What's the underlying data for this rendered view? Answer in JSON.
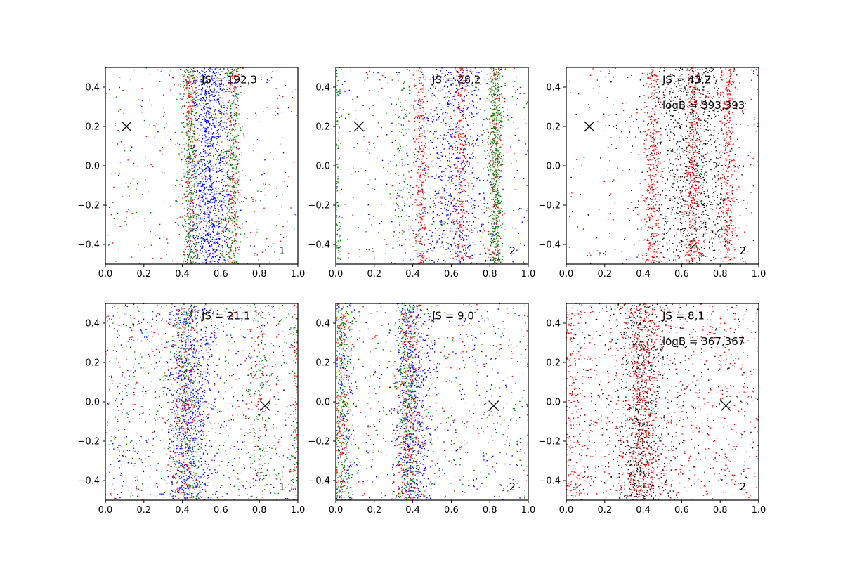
{
  "figure": {
    "colors": {
      "blue": "#0000ff",
      "green": "#008000",
      "red": "#ff0000",
      "black": "#000000",
      "axis": "#000000"
    }
  },
  "chart_data": [
    {
      "type": "scatter",
      "row": 0,
      "col": 0,
      "xlim": [
        0.0,
        1.0
      ],
      "ylim": [
        -0.5,
        0.5
      ],
      "xticks": [
        "0.0",
        "0.2",
        "0.4",
        "0.6",
        "0.8",
        "1.0"
      ],
      "yticks": [
        "-0.4",
        "-0.2",
        "0.0",
        "0.2",
        "0.4"
      ],
      "js_label": "JS = 192,3",
      "logb_label": null,
      "corner_label": "1",
      "marker": {
        "x": 0.11,
        "y": 0.2
      },
      "series": [
        {
          "name": "blue",
          "color": "#0000ff",
          "count": 1300,
          "background": 0.08,
          "clusters": [
            {
              "x": 0.54,
              "sd": 0.055,
              "w": 1.0
            }
          ]
        },
        {
          "name": "green",
          "color": "#008000",
          "count": 900,
          "background": 0.22,
          "clusters": [
            {
              "x": 0.44,
              "sd": 0.02,
              "w": 0.5
            },
            {
              "x": 0.66,
              "sd": 0.022,
              "w": 0.5
            }
          ]
        },
        {
          "name": "red",
          "color": "#ff0000",
          "count": 550,
          "background": 0.22,
          "clusters": [
            {
              "x": 0.44,
              "sd": 0.02,
              "w": 0.5
            },
            {
              "x": 0.66,
              "sd": 0.022,
              "w": 0.5
            }
          ]
        }
      ]
    },
    {
      "type": "scatter",
      "row": 0,
      "col": 1,
      "xlim": [
        0.0,
        1.0
      ],
      "ylim": [
        -0.5,
        0.5
      ],
      "xticks": [
        "0.0",
        "0.2",
        "0.4",
        "0.6",
        "0.8",
        "1.0"
      ],
      "yticks": [
        "-0.4",
        "-0.2",
        "0.0",
        "0.2",
        "0.4"
      ],
      "js_label": "JS = 28,2",
      "logb_label": null,
      "corner_label": "2",
      "marker": {
        "x": 0.12,
        "y": 0.2
      },
      "series": [
        {
          "name": "blue",
          "color": "#0000ff",
          "count": 1000,
          "background": 0.25,
          "clusters": [
            {
              "x": 0.62,
              "sd": 0.1,
              "w": 1.0
            }
          ]
        },
        {
          "name": "red",
          "color": "#ff0000",
          "count": 900,
          "background": 0.1,
          "clusters": [
            {
              "x": 0.44,
              "sd": 0.02,
              "w": 0.33
            },
            {
              "x": 0.65,
              "sd": 0.022,
              "w": 0.4
            },
            {
              "x": 0.83,
              "sd": 0.02,
              "w": 0.27
            }
          ]
        },
        {
          "name": "green",
          "color": "#008000",
          "count": 900,
          "background": 0.15,
          "clusters": [
            {
              "x": 0.83,
              "sd": 0.018,
              "w": 0.7
            },
            {
              "x": 0.34,
              "sd": 0.02,
              "w": 0.15
            },
            {
              "x": 0.01,
              "sd": 0.01,
              "w": 0.15
            }
          ]
        }
      ]
    },
    {
      "type": "scatter",
      "row": 0,
      "col": 2,
      "xlim": [
        0.0,
        1.0
      ],
      "ylim": [
        -0.5,
        0.5
      ],
      "xticks": [
        "0.0",
        "0.2",
        "0.4",
        "0.6",
        "0.8",
        "1.0"
      ],
      "yticks": [
        "-0.4",
        "-0.2",
        "0.0",
        "0.2",
        "0.4"
      ],
      "js_label": "JS = 43,2",
      "logb_label": "logB = 393,393",
      "corner_label": "2",
      "marker": {
        "x": 0.12,
        "y": 0.2
      },
      "series": [
        {
          "name": "black",
          "color": "#000000",
          "count": 1200,
          "background": 0.12,
          "clusters": [
            {
              "x": 0.66,
              "sd": 0.12,
              "w": 1.0
            }
          ]
        },
        {
          "name": "red",
          "color": "#ff0000",
          "count": 1300,
          "background": 0.15,
          "clusters": [
            {
              "x": 0.45,
              "sd": 0.022,
              "w": 0.3
            },
            {
              "x": 0.66,
              "sd": 0.022,
              "w": 0.4
            },
            {
              "x": 0.84,
              "sd": 0.022,
              "w": 0.3
            }
          ]
        }
      ]
    },
    {
      "type": "scatter",
      "row": 1,
      "col": 0,
      "xlim": [
        0.0,
        1.0
      ],
      "ylim": [
        -0.5,
        0.5
      ],
      "xticks": [
        "0.0",
        "0.2",
        "0.4",
        "0.6",
        "0.8",
        "1.0"
      ],
      "yticks": [
        "-0.4",
        "-0.2",
        "0.0",
        "0.2",
        "0.4"
      ],
      "js_label": "JS = 21,1",
      "logb_label": null,
      "corner_label": "1",
      "marker": {
        "x": 0.83,
        "y": -0.02
      },
      "series": [
        {
          "name": "blue",
          "color": "#0000ff",
          "count": 1300,
          "background": 0.35,
          "clusters": [
            {
              "x": 0.44,
              "sd": 0.06,
              "w": 1.0
            }
          ]
        },
        {
          "name": "green",
          "color": "#008000",
          "count": 800,
          "background": 0.45,
          "clusters": [
            {
              "x": 0.42,
              "sd": 0.04,
              "w": 0.6
            },
            {
              "x": 0.8,
              "sd": 0.03,
              "w": 0.2
            },
            {
              "x": 0.99,
              "sd": 0.01,
              "w": 0.2
            }
          ]
        },
        {
          "name": "red",
          "color": "#ff0000",
          "count": 700,
          "background": 0.45,
          "clusters": [
            {
              "x": 0.42,
              "sd": 0.04,
              "w": 0.6
            },
            {
              "x": 0.8,
              "sd": 0.03,
              "w": 0.2
            },
            {
              "x": 0.99,
              "sd": 0.01,
              "w": 0.2
            }
          ]
        }
      ]
    },
    {
      "type": "scatter",
      "row": 1,
      "col": 1,
      "xlim": [
        0.0,
        1.0
      ],
      "ylim": [
        -0.5,
        0.5
      ],
      "xticks": [
        "0.0",
        "0.2",
        "0.4",
        "0.6",
        "0.8",
        "1.0"
      ],
      "yticks": [
        "-0.4",
        "-0.2",
        "0.0",
        "0.2",
        "0.4"
      ],
      "js_label": "JS = 9,0",
      "logb_label": null,
      "corner_label": "2",
      "marker": {
        "x": 0.82,
        "y": -0.02
      },
      "series": [
        {
          "name": "blue",
          "color": "#0000ff",
          "count": 1200,
          "background": 0.3,
          "clusters": [
            {
              "x": 0.4,
              "sd": 0.05,
              "w": 0.8
            },
            {
              "x": 0.03,
              "sd": 0.03,
              "w": 0.2
            }
          ]
        },
        {
          "name": "green",
          "color": "#008000",
          "count": 900,
          "background": 0.3,
          "clusters": [
            {
              "x": 0.37,
              "sd": 0.03,
              "w": 0.5
            },
            {
              "x": 0.03,
              "sd": 0.025,
              "w": 0.5
            }
          ]
        },
        {
          "name": "red",
          "color": "#ff0000",
          "count": 700,
          "background": 0.3,
          "clusters": [
            {
              "x": 0.38,
              "sd": 0.03,
              "w": 0.6
            },
            {
              "x": 0.03,
              "sd": 0.025,
              "w": 0.4
            }
          ]
        }
      ]
    },
    {
      "type": "scatter",
      "row": 1,
      "col": 2,
      "xlim": [
        0.0,
        1.0
      ],
      "ylim": [
        -0.5,
        0.5
      ],
      "xticks": [
        "0.0",
        "0.2",
        "0.4",
        "0.6",
        "0.8",
        "1.0"
      ],
      "yticks": [
        "-0.4",
        "-0.2",
        "0.0",
        "0.2",
        "0.4"
      ],
      "js_label": "JS = 8,1",
      "logb_label": "logB = 367,367",
      "corner_label": "2",
      "marker": {
        "x": 0.83,
        "y": -0.02
      },
      "series": [
        {
          "name": "black",
          "color": "#000000",
          "count": 1100,
          "background": 0.35,
          "clusters": [
            {
              "x": 0.4,
              "sd": 0.07,
              "w": 1.0
            }
          ]
        },
        {
          "name": "red",
          "color": "#ff0000",
          "count": 1500,
          "background": 0.5,
          "clusters": [
            {
              "x": 0.4,
              "sd": 0.04,
              "w": 0.7
            },
            {
              "x": 0.03,
              "sd": 0.03,
              "w": 0.3
            }
          ]
        }
      ]
    }
  ]
}
